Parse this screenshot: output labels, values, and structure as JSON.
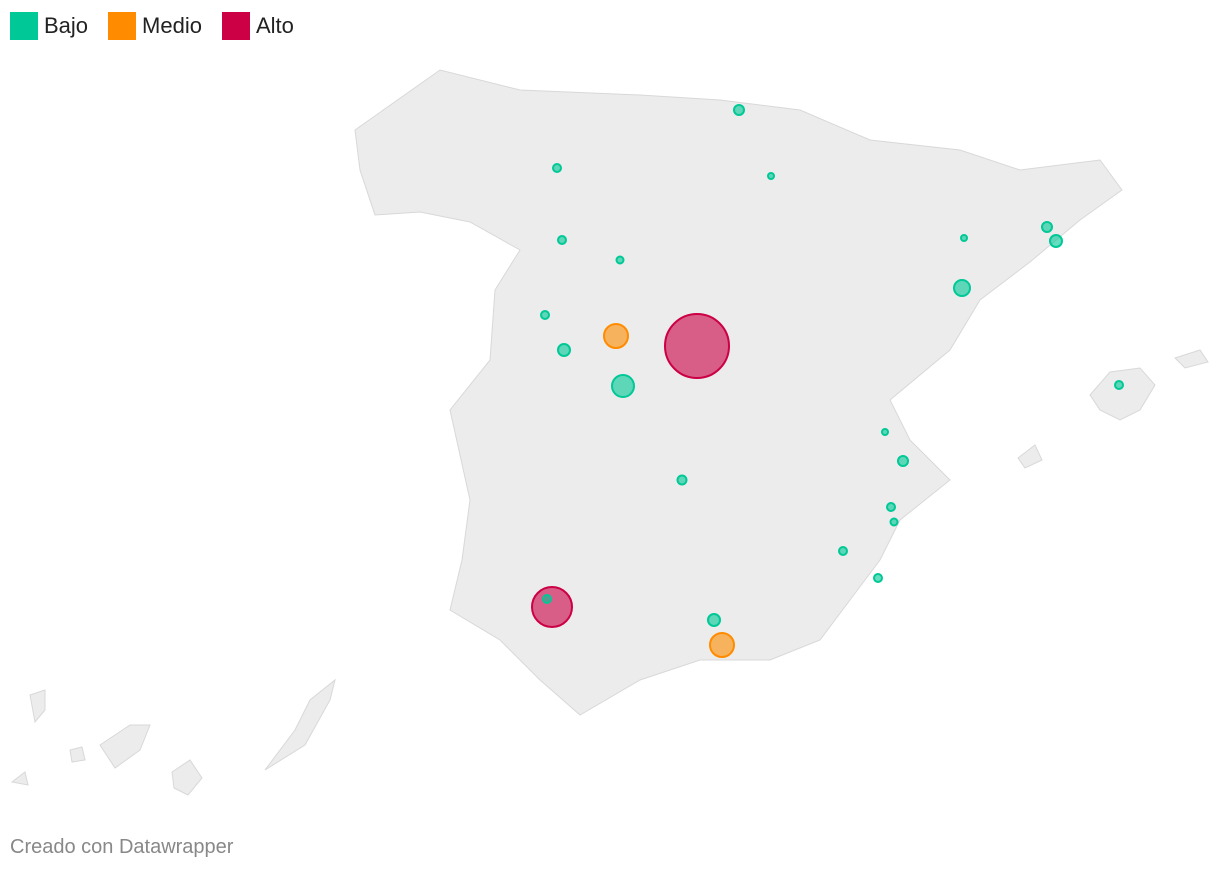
{
  "legend": [
    {
      "label": "Bajo",
      "color": "#00c896"
    },
    {
      "label": "Medio",
      "color": "#ff8c00"
    },
    {
      "label": "Alto",
      "color": "#cc0044"
    }
  ],
  "footer": "Creado con Datawrapper"
}
